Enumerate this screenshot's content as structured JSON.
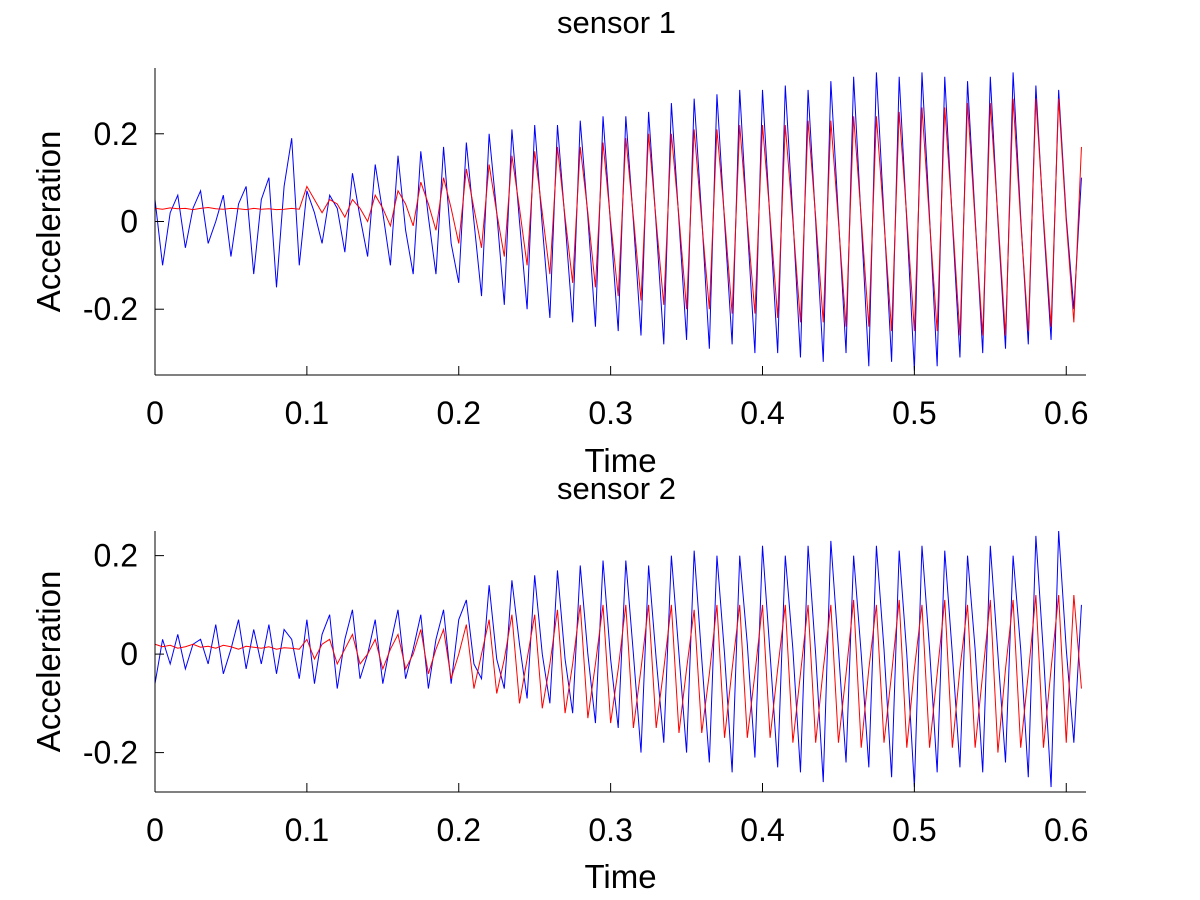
{
  "chart_data": [
    {
      "type": "line",
      "title": "sensor 1",
      "xlabel": "Time",
      "ylabel": "Acceleration",
      "x": [
        0,
        0.005,
        0.01,
        0.015,
        0.02,
        0.025,
        0.03,
        0.035,
        0.04,
        0.045,
        0.05,
        0.055,
        0.06,
        0.065,
        0.07,
        0.075,
        0.08,
        0.085,
        0.09,
        0.095,
        0.1,
        0.105,
        0.11,
        0.115,
        0.12,
        0.125,
        0.13,
        0.135,
        0.14,
        0.145,
        0.15,
        0.155,
        0.16,
        0.165,
        0.17,
        0.175,
        0.18,
        0.185,
        0.19,
        0.195,
        0.2,
        0.205,
        0.21,
        0.215,
        0.22,
        0.225,
        0.23,
        0.235,
        0.24,
        0.245,
        0.25,
        0.255,
        0.26,
        0.265,
        0.27,
        0.275,
        0.28,
        0.285,
        0.29,
        0.295,
        0.3,
        0.305,
        0.31,
        0.315,
        0.32,
        0.325,
        0.33,
        0.335,
        0.34,
        0.345,
        0.35,
        0.355,
        0.36,
        0.365,
        0.37,
        0.375,
        0.38,
        0.385,
        0.39,
        0.395,
        0.4,
        0.405,
        0.41,
        0.415,
        0.42,
        0.425,
        0.43,
        0.435,
        0.44,
        0.445,
        0.45,
        0.455,
        0.46,
        0.465,
        0.47,
        0.475,
        0.48,
        0.485,
        0.49,
        0.495,
        0.5,
        0.505,
        0.51,
        0.515,
        0.52,
        0.525,
        0.53,
        0.535,
        0.54,
        0.545,
        0.55,
        0.555,
        0.56,
        0.565,
        0.57,
        0.575,
        0.58,
        0.585,
        0.59,
        0.595,
        0.6,
        0.605,
        0.61
      ],
      "series": [
        {
          "color": "#0000ff",
          "values": [
            0.05,
            -0.1,
            0.02,
            0.06,
            -0.06,
            0.03,
            0.07,
            -0.05,
            0.0,
            0.06,
            -0.08,
            0.04,
            0.08,
            -0.12,
            0.05,
            0.1,
            -0.15,
            0.08,
            0.19,
            -0.1,
            0.07,
            0.02,
            -0.05,
            0.06,
            0.03,
            -0.07,
            0.11,
            0.01,
            -0.08,
            0.13,
            0.02,
            -0.1,
            0.15,
            -0.02,
            -0.12,
            0.16,
            0.01,
            -0.12,
            0.17,
            -0.05,
            -0.14,
            0.18,
            0.0,
            -0.17,
            0.2,
            0.02,
            -0.19,
            0.21,
            0.0,
            -0.2,
            0.22,
            -0.01,
            -0.22,
            0.22,
            0.0,
            -0.23,
            0.23,
            0.01,
            -0.24,
            0.24,
            -0.01,
            -0.25,
            0.24,
            0.0,
            -0.26,
            0.25,
            -0.01,
            -0.28,
            0.27,
            0.0,
            -0.27,
            0.28,
            0.01,
            -0.29,
            0.29,
            0.0,
            -0.28,
            0.3,
            -0.01,
            -0.3,
            0.3,
            0,
            -0.3,
            0.31,
            0.01,
            -0.31,
            0.3,
            0,
            -0.32,
            0.32,
            0.01,
            -0.3,
            0.33,
            0,
            -0.33,
            0.34,
            0.01,
            -0.32,
            0.33,
            0,
            -0.34,
            0.34,
            0.01,
            -0.33,
            0.33,
            0,
            -0.31,
            0.32,
            0.01,
            -0.3,
            0.33,
            0,
            -0.29,
            0.34,
            0.01,
            -0.28,
            0.31,
            0,
            -0.27,
            0.3,
            0.01,
            -0.2,
            0.1
          ]
        },
        {
          "color": "#ff0000",
          "values": [
            0.03,
            0.028,
            0.031,
            0.029,
            0.03,
            0.027,
            0.03,
            0.032,
            0.029,
            0.028,
            0.03,
            0.029,
            0.027,
            0.03,
            0.028,
            0.029,
            0.027,
            0.028,
            0.03,
            0.028,
            0.08,
            0.05,
            0.02,
            0.05,
            0.04,
            0.01,
            0.05,
            0.03,
            0,
            0.06,
            0.03,
            -0.01,
            0.07,
            0.04,
            -0.01,
            0.09,
            0.04,
            -0.02,
            0.1,
            0.03,
            -0.05,
            0.12,
            0.03,
            -0.06,
            0.13,
            0.02,
            -0.08,
            0.15,
            0.03,
            -0.1,
            0.16,
            0.02,
            -0.12,
            0.17,
            0.01,
            -0.14,
            0.17,
            0.02,
            -0.15,
            0.18,
            0,
            -0.17,
            0.19,
            0.01,
            -0.18,
            0.2,
            0,
            -0.19,
            0.2,
            0.01,
            -0.2,
            0.21,
            0,
            -0.2,
            0.21,
            0.01,
            -0.21,
            0.22,
            0,
            -0.21,
            0.22,
            0.01,
            -0.22,
            0.22,
            0,
            -0.23,
            0.23,
            0.01,
            -0.23,
            0.23,
            0,
            -0.24,
            0.24,
            0.01,
            -0.24,
            0.24,
            0,
            -0.25,
            0.25,
            0.01,
            -0.25,
            0.26,
            0,
            -0.25,
            0.26,
            0.01,
            -0.26,
            0.27,
            0,
            -0.26,
            0.27,
            0.01,
            -0.26,
            0.28,
            0,
            -0.25,
            0.28,
            0.01,
            -0.24,
            0.28,
            0,
            -0.23,
            0.17
          ]
        }
      ],
      "xlim": [
        0,
        0.613
      ],
      "xticks": [
        0,
        0.1,
        0.2,
        0.3,
        0.4,
        0.5,
        0.6
      ],
      "ylim": [
        -0.35,
        0.35
      ],
      "yticks": [
        -0.2,
        0,
        0.2
      ]
    },
    {
      "type": "line",
      "title": "sensor 2",
      "xlabel": "Time",
      "ylabel": "Acceleration",
      "x": [
        0,
        0.005,
        0.01,
        0.015,
        0.02,
        0.025,
        0.03,
        0.035,
        0.04,
        0.045,
        0.05,
        0.055,
        0.06,
        0.065,
        0.07,
        0.075,
        0.08,
        0.085,
        0.09,
        0.095,
        0.1,
        0.105,
        0.11,
        0.115,
        0.12,
        0.125,
        0.13,
        0.135,
        0.14,
        0.145,
        0.15,
        0.155,
        0.16,
        0.165,
        0.17,
        0.175,
        0.18,
        0.185,
        0.19,
        0.195,
        0.2,
        0.205,
        0.21,
        0.215,
        0.22,
        0.225,
        0.23,
        0.235,
        0.24,
        0.245,
        0.25,
        0.255,
        0.26,
        0.265,
        0.27,
        0.275,
        0.28,
        0.285,
        0.29,
        0.295,
        0.3,
        0.305,
        0.31,
        0.315,
        0.32,
        0.325,
        0.33,
        0.335,
        0.34,
        0.345,
        0.35,
        0.355,
        0.36,
        0.365,
        0.37,
        0.375,
        0.38,
        0.385,
        0.39,
        0.395,
        0.4,
        0.405,
        0.41,
        0.415,
        0.42,
        0.425,
        0.43,
        0.435,
        0.44,
        0.445,
        0.45,
        0.455,
        0.46,
        0.465,
        0.47,
        0.475,
        0.48,
        0.485,
        0.49,
        0.495,
        0.5,
        0.505,
        0.51,
        0.515,
        0.52,
        0.525,
        0.53,
        0.535,
        0.54,
        0.545,
        0.55,
        0.555,
        0.56,
        0.565,
        0.57,
        0.575,
        0.58,
        0.585,
        0.59,
        0.595,
        0.6,
        0.605,
        0.61
      ],
      "series": [
        {
          "color": "#0000ff",
          "values": [
            -0.06,
            0.03,
            -0.02,
            0.04,
            -0.03,
            0.02,
            0.03,
            -0.02,
            0.06,
            -0.04,
            0.01,
            0.07,
            -0.03,
            0.05,
            -0.02,
            0.06,
            -0.04,
            0.05,
            0.03,
            -0.05,
            0.07,
            -0.06,
            0.04,
            0.08,
            -0.07,
            0.03,
            0.09,
            -0.05,
            0.0,
            0.07,
            -0.06,
            0.02,
            0.09,
            -0.05,
            0.01,
            0.08,
            -0.07,
            0.03,
            0.09,
            -0.06,
            0.07,
            0.11,
            -0.02,
            -0.05,
            0.14,
            -0.01,
            -0.07,
            0.15,
            0.02,
            -0.09,
            0.16,
            0.0,
            -0.1,
            0.17,
            -0.01,
            -0.12,
            0.18,
            0.0,
            -0.14,
            0.19,
            -0.01,
            -0.15,
            0.19,
            0.0,
            -0.2,
            0.18,
            -0.01,
            -0.18,
            0.2,
            0,
            -0.2,
            0.21,
            -0.01,
            -0.22,
            0.2,
            0,
            -0.24,
            0.2,
            0.02,
            -0.21,
            0.22,
            0,
            -0.23,
            0.2,
            0.01,
            -0.24,
            0.22,
            0,
            -0.26,
            0.23,
            0.01,
            -0.22,
            0.2,
            0,
            -0.23,
            0.22,
            0.01,
            -0.25,
            0.21,
            0,
            -0.27,
            0.22,
            0.01,
            -0.24,
            0.21,
            0,
            -0.23,
            0.2,
            0.01,
            -0.24,
            0.22,
            0,
            -0.22,
            0.2,
            0.01,
            -0.25,
            0.24,
            0,
            -0.27,
            0.25,
            0.01,
            -0.18,
            0.1
          ]
        },
        {
          "color": "#ff0000",
          "values": [
            0.02,
            0.015,
            0.018,
            0.012,
            0.015,
            0.02,
            0.014,
            0.016,
            0.012,
            0.018,
            0.015,
            0.01,
            0.016,
            0.014,
            0.012,
            0.015,
            0.01,
            0.013,
            0.012,
            0.01,
            0.03,
            -0.01,
            0.02,
            0.03,
            -0.02,
            0.01,
            0.04,
            -0.02,
            0,
            0.03,
            -0.03,
            0.01,
            0.04,
            -0.03,
            0,
            0.05,
            -0.04,
            0.01,
            0.05,
            -0.05,
            0.0,
            0.06,
            -0.07,
            0.0,
            0.07,
            -0.08,
            -0.01,
            0.08,
            -0.1,
            -0.01,
            0.08,
            -0.11,
            -0.02,
            0.09,
            -0.12,
            -0.02,
            0.1,
            -0.13,
            -0.02,
            0.1,
            -0.14,
            -0.03,
            0.1,
            -0.15,
            -0.03,
            0.1,
            -0.15,
            -0.03,
            0.1,
            -0.16,
            -0.03,
            0.09,
            -0.16,
            -0.04,
            0.1,
            -0.17,
            -0.03,
            0.1,
            -0.17,
            -0.04,
            0.1,
            -0.17,
            -0.03,
            0.1,
            -0.18,
            -0.04,
            0.1,
            -0.18,
            -0.03,
            0.1,
            -0.18,
            -0.04,
            0.11,
            -0.19,
            -0.03,
            0.1,
            -0.18,
            -0.04,
            0.11,
            -0.19,
            -0.03,
            0.1,
            -0.19,
            -0.04,
            0.11,
            -0.19,
            -0.03,
            0.1,
            -0.19,
            -0.04,
            0.11,
            -0.2,
            -0.03,
            0.11,
            -0.19,
            -0.04,
            0.12,
            -0.19,
            -0.03,
            0.12,
            -0.18,
            0.12,
            -0.07
          ]
        }
      ],
      "xlim": [
        0,
        0.613
      ],
      "xticks": [
        0,
        0.1,
        0.2,
        0.3,
        0.4,
        0.5,
        0.6
      ],
      "ylim": [
        -0.28,
        0.25
      ],
      "yticks": [
        -0.2,
        0,
        0.2
      ]
    }
  ]
}
